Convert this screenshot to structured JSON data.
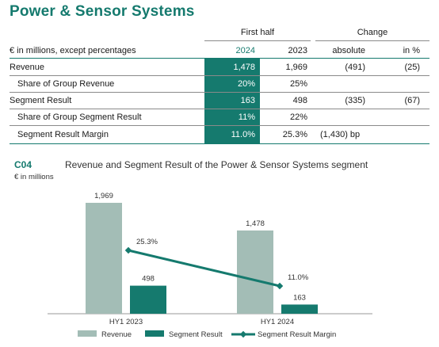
{
  "page": {
    "title": "Power & Sensor Systems"
  },
  "table": {
    "header_group_first_half": "First half",
    "header_group_change": "Change",
    "unit_label": "€ in millions, except percentages",
    "col_2024": "2024",
    "col_2023": "2023",
    "col_absolute": "absolute",
    "col_pct": "in %",
    "rows": [
      {
        "label": "Revenue",
        "v2024": "1,478",
        "v2023": "1,969",
        "abs": "(491)",
        "pct": "(25)"
      },
      {
        "label": "Share of Group Revenue",
        "v2024": "20%",
        "v2023": "25%",
        "abs": "",
        "pct": ""
      },
      {
        "label": "Segment Result",
        "v2024": "163",
        "v2023": "498",
        "abs": "(335)",
        "pct": "(67)"
      },
      {
        "label": "Share of Group Segment Result",
        "v2024": "11%",
        "v2023": "22%",
        "abs": "",
        "pct": ""
      },
      {
        "label": "Segment Result Margin",
        "v2024": "11.0%",
        "v2023": "25.3%",
        "abs": "(1,430)  bp",
        "pct": ""
      }
    ]
  },
  "chart": {
    "code": "C04",
    "title": "Revenue and Segment Result of the Power & Sensor Systems segment",
    "unit": "€ in millions",
    "colors": {
      "revenue": "#a3bdb6",
      "segment_result": "#157a6e",
      "margin": "#157a6e"
    }
  },
  "chart_data": {
    "type": "bar",
    "categories": [
      "HY1 2023",
      "HY1 2024"
    ],
    "series": [
      {
        "name": "Revenue",
        "values": [
          1969,
          1478
        ],
        "labels": [
          "1,969",
          "1,478"
        ]
      },
      {
        "name": "Segment Result",
        "values": [
          498,
          163
        ],
        "labels": [
          "498",
          "163"
        ]
      }
    ],
    "line_series": {
      "name": "Segment Result Margin",
      "values": [
        25.3,
        11.0
      ],
      "labels": [
        "25.3%",
        "11.0%"
      ]
    },
    "legend": [
      "Revenue",
      "Segment Result",
      "Segment Result Margin"
    ]
  }
}
